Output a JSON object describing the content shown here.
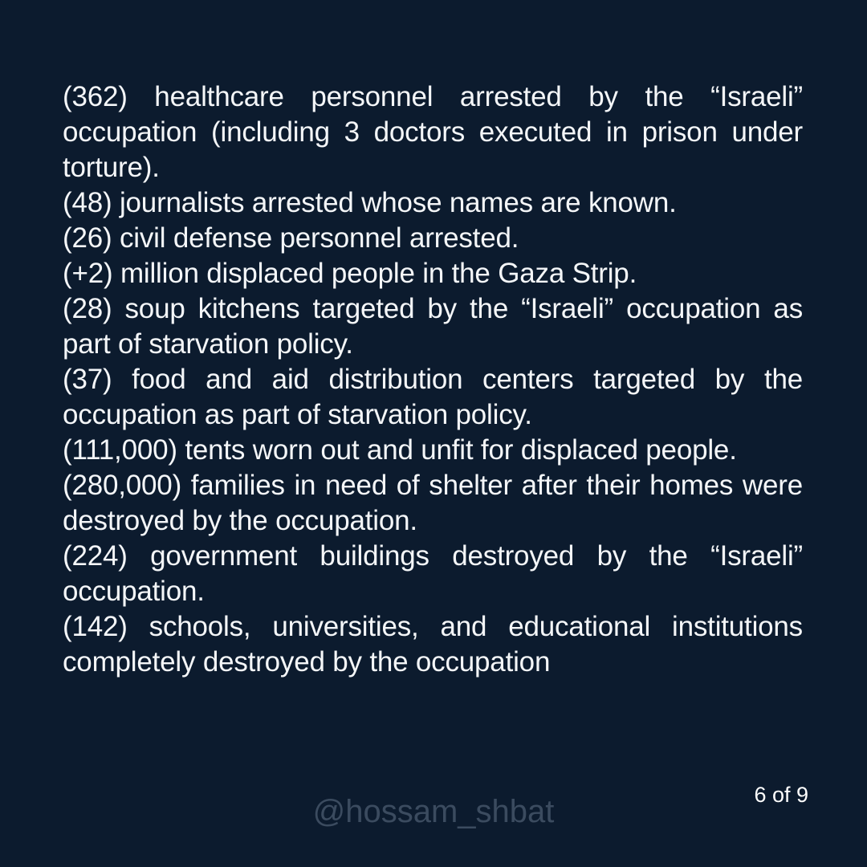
{
  "page": {
    "background_color": "#0c1b2e",
    "text_color": "#f4f6f8"
  },
  "stats": {
    "items": [
      "(362) healthcare personnel arrested by the “Israeli” occupation (including 3 doctors executed in prison under torture).",
      "(48) journalists arrested whose names are known.",
      "(26) civil defense personnel arrested.",
      "(+2) million displaced people in the Gaza Strip.",
      "(28) soup kitchens targeted by the “Israeli” occupation as part of starvation policy.",
      "(37) food and aid distribution centers targeted by the occupation as part of starvation policy.",
      "(111,000) tents worn out and unfit for displaced people.",
      "(280,000) families in need of shelter after their homes were destroyed by the occupation.",
      "(224) government buildings destroyed by the “Israeli” occupation.",
      "(142) schools, universities, and educational institutions completely destroyed by the occupation"
    ]
  },
  "footer": {
    "watermark": "@hossam_shbat",
    "watermark_color": "#3b4b5f",
    "page_indicator": "6 of 9"
  }
}
